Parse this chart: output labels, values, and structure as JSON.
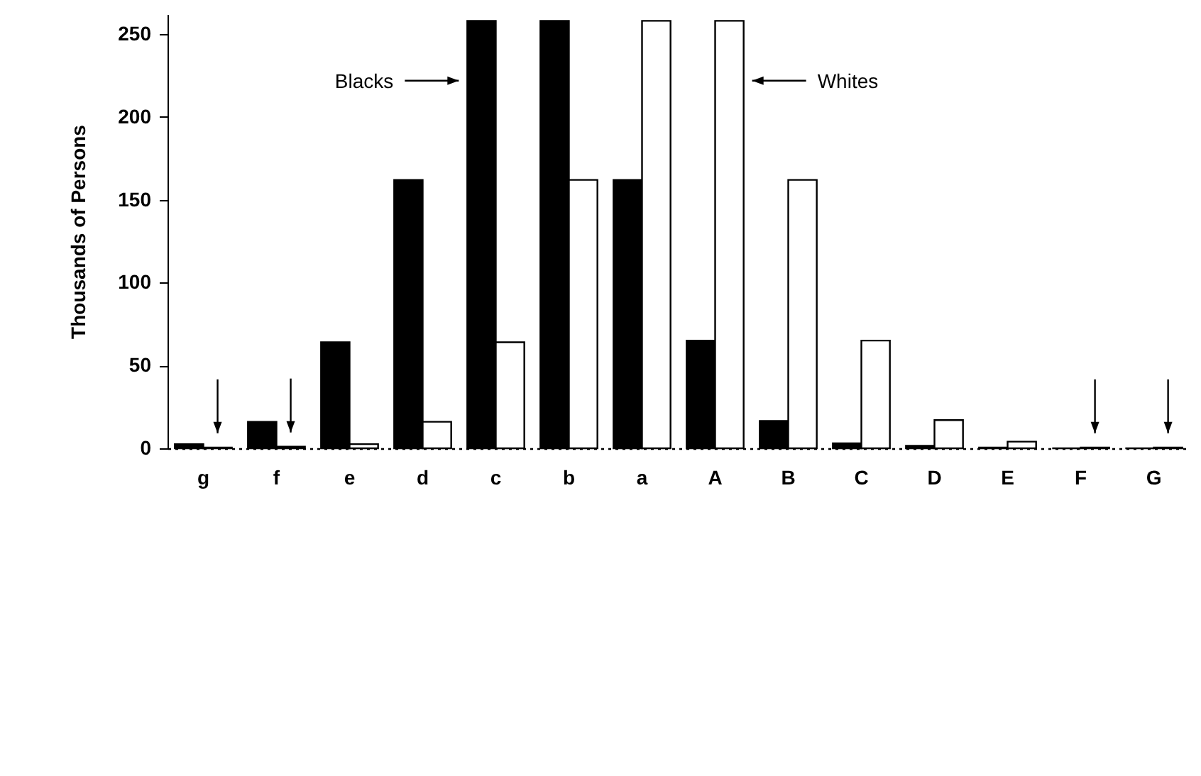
{
  "chart_data": {
    "type": "bar",
    "ylabel": "Thousands of Persons",
    "categories": [
      "g",
      "f",
      "e",
      "d",
      "c",
      "b",
      "a",
      "A",
      "B",
      "C",
      "D",
      "E",
      "F",
      "G"
    ],
    "series": [
      {
        "color": "#000000",
        "values": [
          2.5,
          16,
          64,
          162,
          258,
          258,
          162,
          65,
          16.5,
          3,
          1.5,
          0.5,
          0,
          0
        ]
      },
      {
        "color": "#ffffff",
        "values": [
          0.5,
          1,
          2.5,
          16,
          64,
          162,
          258,
          258,
          162,
          65,
          17,
          4,
          0.5,
          0.5
        ]
      }
    ],
    "ylim": [
      0,
      262
    ],
    "yticks": [
      0,
      50,
      100,
      150,
      200,
      250
    ],
    "grid": false,
    "annotations": [
      "Blacks",
      "Whites"
    ]
  }
}
